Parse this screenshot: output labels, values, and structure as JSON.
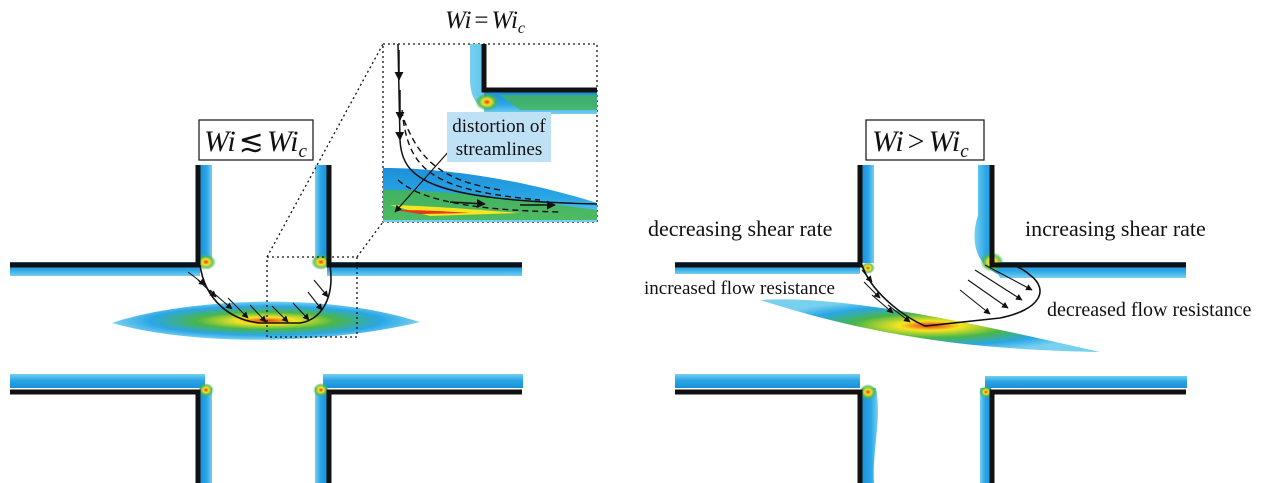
{
  "panels": {
    "left": {
      "label_pre": "Wi",
      "label_rel": "≲",
      "label_post": "Wi",
      "label_sub": "c"
    },
    "right": {
      "label_pre": "Wi",
      "label_rel": ">",
      "label_post": "Wi",
      "label_sub": "c"
    }
  },
  "inset": {
    "label_pre": "Wi",
    "label_rel": "=",
    "label_post": "Wi",
    "label_sub": "c",
    "callout_line1": "distortion of",
    "callout_line2": "streamlines"
  },
  "annotations": {
    "decreasing_shear": "decreasing shear rate",
    "increasing_shear": "increasing shear rate",
    "increased_resistance": "increased flow resistance",
    "decreased_resistance": "decreased flow resistance"
  },
  "colors": {
    "wall": "#111111",
    "fluid": "#1f9be0",
    "fluid_edge": "#68c8ee",
    "accent_green": "#49b64a",
    "accent_yellow": "#f7e51d",
    "accent_red": "#e7341f",
    "callout_bg": "#bfe1f6"
  }
}
